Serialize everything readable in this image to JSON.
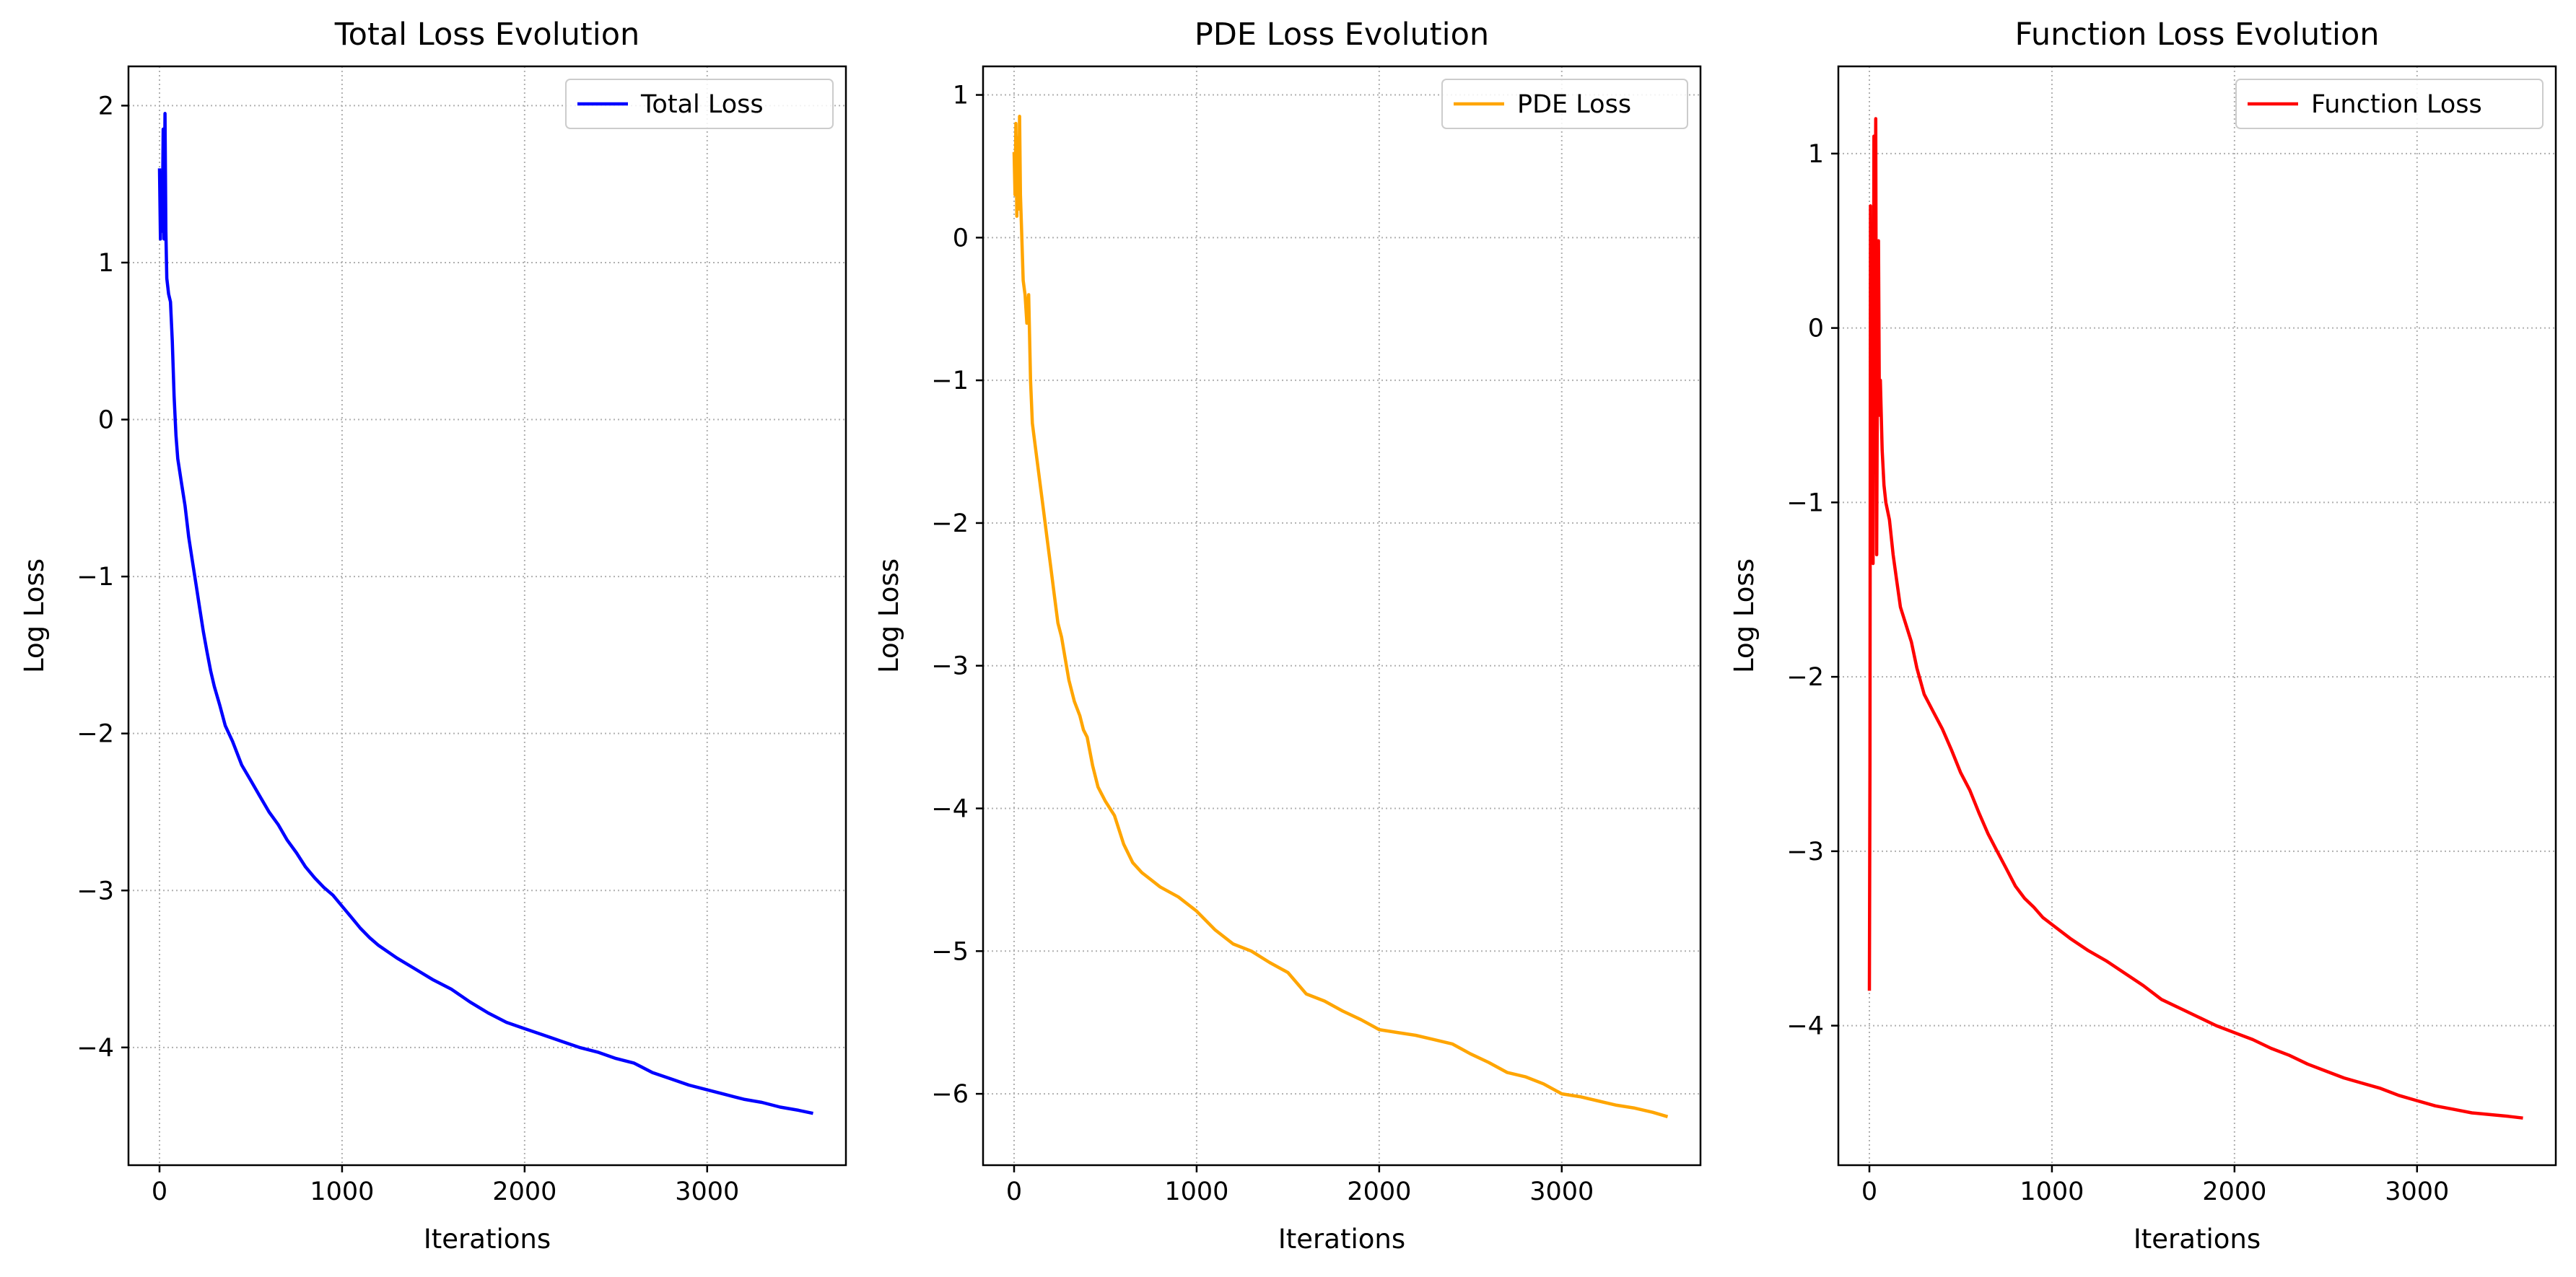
{
  "chart_data": [
    {
      "type": "line",
      "title": "Total Loss Evolution",
      "xlabel": "Iterations",
      "ylabel": "Log Loss",
      "xlim": [
        -170,
        3760
      ],
      "ylim": [
        -4.75,
        2.25
      ],
      "xticks": [
        0,
        1000,
        2000,
        3000
      ],
      "xtick_labels": [
        "0",
        "1000",
        "2000",
        "3000"
      ],
      "yticks": [
        -4,
        -3,
        -2,
        -1,
        0,
        1,
        2
      ],
      "ytick_labels": [
        "−4",
        "−3",
        "−2",
        "−1",
        "0",
        "1",
        "2"
      ],
      "grid": true,
      "legend": "top-right",
      "series": [
        {
          "name": "Total Loss",
          "color": "#0000ff",
          "x": [
            0,
            5,
            10,
            15,
            20,
            25,
            30,
            35,
            40,
            50,
            60,
            70,
            80,
            90,
            100,
            120,
            140,
            160,
            180,
            200,
            220,
            240,
            260,
            280,
            300,
            330,
            360,
            400,
            450,
            500,
            550,
            600,
            650,
            700,
            750,
            800,
            850,
            900,
            950,
            1000,
            1050,
            1100,
            1150,
            1200,
            1300,
            1400,
            1500,
            1600,
            1700,
            1800,
            1900,
            2000,
            2100,
            2200,
            2300,
            2400,
            2500,
            2600,
            2700,
            2800,
            2900,
            3000,
            3100,
            3200,
            3300,
            3400,
            3500,
            3580
          ],
          "values": [
            1.6,
            1.15,
            1.55,
            1.2,
            1.85,
            1.15,
            1.95,
            1.2,
            0.9,
            0.8,
            0.75,
            0.5,
            0.15,
            -0.1,
            -0.25,
            -0.4,
            -0.55,
            -0.75,
            -0.9,
            -1.05,
            -1.2,
            -1.35,
            -1.48,
            -1.6,
            -1.7,
            -1.82,
            -1.95,
            -2.05,
            -2.2,
            -2.3,
            -2.4,
            -2.5,
            -2.58,
            -2.68,
            -2.76,
            -2.85,
            -2.92,
            -2.98,
            -3.03,
            -3.1,
            -3.17,
            -3.24,
            -3.3,
            -3.35,
            -3.43,
            -3.5,
            -3.57,
            -3.63,
            -3.71,
            -3.78,
            -3.84,
            -3.88,
            -3.92,
            -3.96,
            -4.0,
            -4.03,
            -4.07,
            -4.1,
            -4.16,
            -4.2,
            -4.24,
            -4.27,
            -4.3,
            -4.33,
            -4.35,
            -4.38,
            -4.4,
            -4.42
          ]
        }
      ]
    },
    {
      "type": "line",
      "title": "PDE Loss Evolution",
      "xlabel": "Iterations",
      "ylabel": "Log Loss",
      "xlim": [
        -170,
        3760
      ],
      "ylim": [
        -6.5,
        1.2
      ],
      "xticks": [
        0,
        1000,
        2000,
        3000
      ],
      "xtick_labels": [
        "0",
        "1000",
        "2000",
        "3000"
      ],
      "yticks": [
        -6,
        -5,
        -4,
        -3,
        -2,
        -1,
        0,
        1
      ],
      "ytick_labels": [
        "−6",
        "−5",
        "−4",
        "−3",
        "−2",
        "−1",
        "0",
        "1"
      ],
      "grid": true,
      "legend": "top-right",
      "series": [
        {
          "name": "PDE Loss",
          "color": "#ffa500",
          "x": [
            0,
            5,
            10,
            15,
            20,
            25,
            30,
            35,
            40,
            50,
            60,
            70,
            80,
            90,
            100,
            110,
            120,
            140,
            160,
            180,
            200,
            220,
            240,
            260,
            280,
            300,
            330,
            360,
            380,
            400,
            430,
            460,
            500,
            550,
            600,
            650,
            700,
            750,
            800,
            900,
            1000,
            1100,
            1200,
            1300,
            1400,
            1500,
            1600,
            1700,
            1800,
            1900,
            2000,
            2100,
            2200,
            2300,
            2400,
            2500,
            2600,
            2700,
            2800,
            2900,
            3000,
            3100,
            3200,
            3300,
            3400,
            3500,
            3580
          ],
          "values": [
            0.6,
            0.3,
            0.8,
            0.15,
            0.7,
            0.2,
            0.85,
            0.3,
            0.1,
            -0.3,
            -0.4,
            -0.6,
            -0.4,
            -1.0,
            -1.3,
            -1.4,
            -1.5,
            -1.7,
            -1.9,
            -2.1,
            -2.3,
            -2.5,
            -2.7,
            -2.8,
            -2.95,
            -3.1,
            -3.25,
            -3.35,
            -3.45,
            -3.5,
            -3.7,
            -3.85,
            -3.95,
            -4.05,
            -4.25,
            -4.38,
            -4.45,
            -4.5,
            -4.55,
            -4.62,
            -4.72,
            -4.85,
            -4.95,
            -5.0,
            -5.08,
            -5.15,
            -5.3,
            -5.35,
            -5.42,
            -5.48,
            -5.55,
            -5.57,
            -5.59,
            -5.62,
            -5.65,
            -5.72,
            -5.78,
            -5.85,
            -5.88,
            -5.93,
            -6.0,
            -6.02,
            -6.05,
            -6.08,
            -6.1,
            -6.13,
            -6.16
          ]
        }
      ]
    },
    {
      "type": "line",
      "title": "Function Loss Evolution",
      "xlabel": "Iterations",
      "ylabel": "Log Loss",
      "xlim": [
        -170,
        3760
      ],
      "ylim": [
        -4.8,
        1.5
      ],
      "xticks": [
        0,
        1000,
        2000,
        3000
      ],
      "xtick_labels": [
        "0",
        "1000",
        "2000",
        "3000"
      ],
      "yticks": [
        -4,
        -3,
        -2,
        -1,
        0,
        1
      ],
      "ytick_labels": [
        "−4",
        "−3",
        "−2",
        "−1",
        "0",
        "1"
      ],
      "grid": true,
      "legend": "top-right",
      "series": [
        {
          "name": "Function Loss",
          "color": "#ff0000",
          "x": [
            0,
            3,
            6,
            10,
            15,
            20,
            25,
            30,
            35,
            40,
            45,
            50,
            55,
            60,
            70,
            80,
            90,
            100,
            110,
            130,
            150,
            170,
            200,
            230,
            260,
            300,
            350,
            400,
            450,
            500,
            550,
            600,
            650,
            700,
            750,
            800,
            850,
            900,
            950,
            1000,
            1100,
            1200,
            1300,
            1400,
            1500,
            1600,
            1700,
            1800,
            1900,
            2000,
            2100,
            2200,
            2300,
            2400,
            2500,
            2600,
            2700,
            2800,
            2900,
            3000,
            3100,
            3200,
            3300,
            3400,
            3500,
            3580
          ],
          "values": [
            -3.8,
            -2.5,
            0.7,
            -1.2,
            0.4,
            -1.35,
            1.1,
            0.2,
            1.2,
            -1.3,
            0.1,
            0.5,
            -0.5,
            -0.3,
            -0.7,
            -0.9,
            -1.0,
            -1.05,
            -1.1,
            -1.3,
            -1.45,
            -1.6,
            -1.7,
            -1.8,
            -1.95,
            -2.1,
            -2.2,
            -2.3,
            -2.42,
            -2.55,
            -2.65,
            -2.78,
            -2.9,
            -3.0,
            -3.1,
            -3.2,
            -3.27,
            -3.32,
            -3.38,
            -3.42,
            -3.5,
            -3.57,
            -3.63,
            -3.7,
            -3.77,
            -3.85,
            -3.9,
            -3.95,
            -4.0,
            -4.04,
            -4.08,
            -4.13,
            -4.17,
            -4.22,
            -4.26,
            -4.3,
            -4.33,
            -4.36,
            -4.4,
            -4.43,
            -4.46,
            -4.48,
            -4.5,
            -4.51,
            -4.52,
            -4.53
          ]
        }
      ]
    }
  ]
}
